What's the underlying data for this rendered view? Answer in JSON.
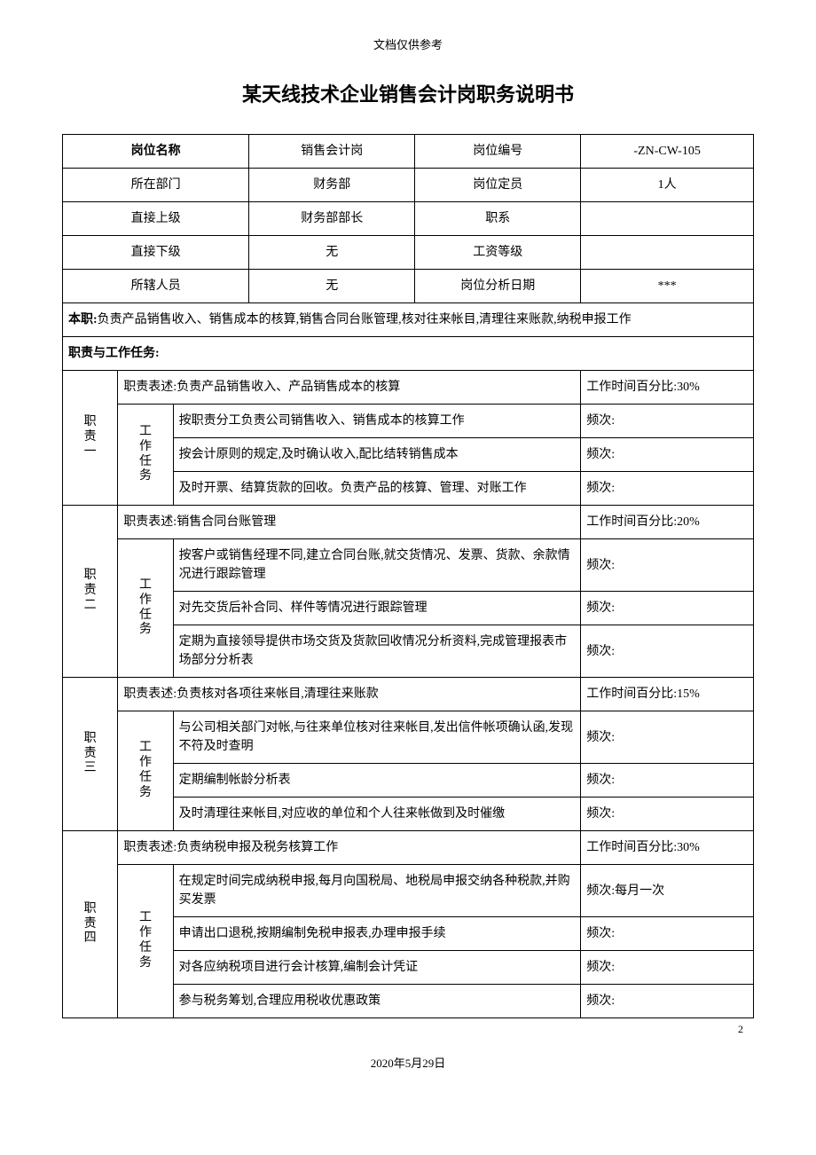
{
  "header_note": "文档仅供参考",
  "title": "某天线技术企业销售会计岗职务说明书",
  "info_rows": [
    {
      "label1": "岗位名称",
      "value1": "销售会计岗",
      "label2": "岗位编号",
      "value2": "-ZN-CW-105",
      "label1_bold": true
    },
    {
      "label1": "所在部门",
      "value1": "财务部",
      "label2": "岗位定员",
      "value2": "1人"
    },
    {
      "label1": "直接上级",
      "value1": "财务部部长",
      "label2": "职系",
      "value2": ""
    },
    {
      "label1": "直接下级",
      "value1": "无",
      "label2": "工资等级",
      "value2": ""
    },
    {
      "label1": "所辖人员",
      "value1": "无",
      "label2": "岗位分析日期",
      "value2": "***"
    }
  ],
  "main_duty_label": "本职:",
  "main_duty_text": "负责产品销售收入、销售成本的核算,销售合同台账管理,核对往来帐目,清理往来账款,纳税申报工作",
  "section_title": "职责与工作任务:",
  "duties": [
    {
      "num": "职责一",
      "desc_label": "职责表述:",
      "desc": "负责产品销售收入、产品销售成本的核算",
      "time_pct": "工作时间百分比:30%",
      "task_label": "工作任务",
      "tasks": [
        {
          "text": "按职责分工负责公司销售收入、销售成本的核算工作",
          "freq": "频次:"
        },
        {
          "text": "按会计原则的规定,及时确认收入,配比结转销售成本",
          "freq": "频次:"
        },
        {
          "text": "及时开票、结算货款的回收。负责产品的核算、管理、对账工作",
          "freq": "频次:"
        }
      ]
    },
    {
      "num": "职责二",
      "desc_label": "职责表述:",
      "desc": "销售合同台账管理",
      "time_pct": "工作时间百分比:20%",
      "task_label": "工作任务",
      "tasks": [
        {
          "text": "按客户或销售经理不同,建立合同台账,就交货情况、发票、货款、余款情况进行跟踪管理",
          "freq": "频次:"
        },
        {
          "text": "对先交货后补合同、样件等情况进行跟踪管理",
          "freq": "频次:"
        },
        {
          "text": "定期为直接领导提供市场交货及货款回收情况分析资料,完成管理报表市场部分分析表",
          "freq": "频次:"
        }
      ]
    },
    {
      "num": "职责三",
      "desc_label": "职责表述:",
      "desc": "负责核对各项往来帐目,清理往来账款",
      "time_pct": "工作时间百分比:15%",
      "task_label": "工作任务",
      "tasks": [
        {
          "text": "与公司相关部门对帐,与往来单位核对往来帐目,发出信件帐项确认函,发现不符及时查明",
          "freq": "频次:"
        },
        {
          "text": "定期编制帐龄分析表",
          "freq": "频次:"
        },
        {
          "text": "及时清理往来帐目,对应收的单位和个人往来帐做到及时催缴",
          "freq": "频次:"
        }
      ]
    },
    {
      "num": "职责四",
      "desc_label": "职责表述:",
      "desc": "负责纳税申报及税务核算工作",
      "time_pct": "工作时间百分比:30%",
      "task_label": "工作任务",
      "tasks": [
        {
          "text": "在规定时间完成纳税申报,每月向国税局、地税局申报交纳各种税款,并购买发票",
          "freq": "频次:每月一次"
        },
        {
          "text": "申请出口退税,按期编制免税申报表,办理申报手续",
          "freq": "频次:"
        },
        {
          "text": "对各应纳税项目进行会计核算,编制会计凭证",
          "freq": "频次:"
        },
        {
          "text": "参与税务筹划,合理应用税收优惠政策",
          "freq": "频次:"
        }
      ]
    }
  ],
  "page_number": "2",
  "footer_date": "2020年5月29日",
  "col_widths": {
    "col1": "8%",
    "col2": "8%",
    "col3": "11%",
    "col4": "24%",
    "col5": "24%",
    "col6": "25%"
  }
}
